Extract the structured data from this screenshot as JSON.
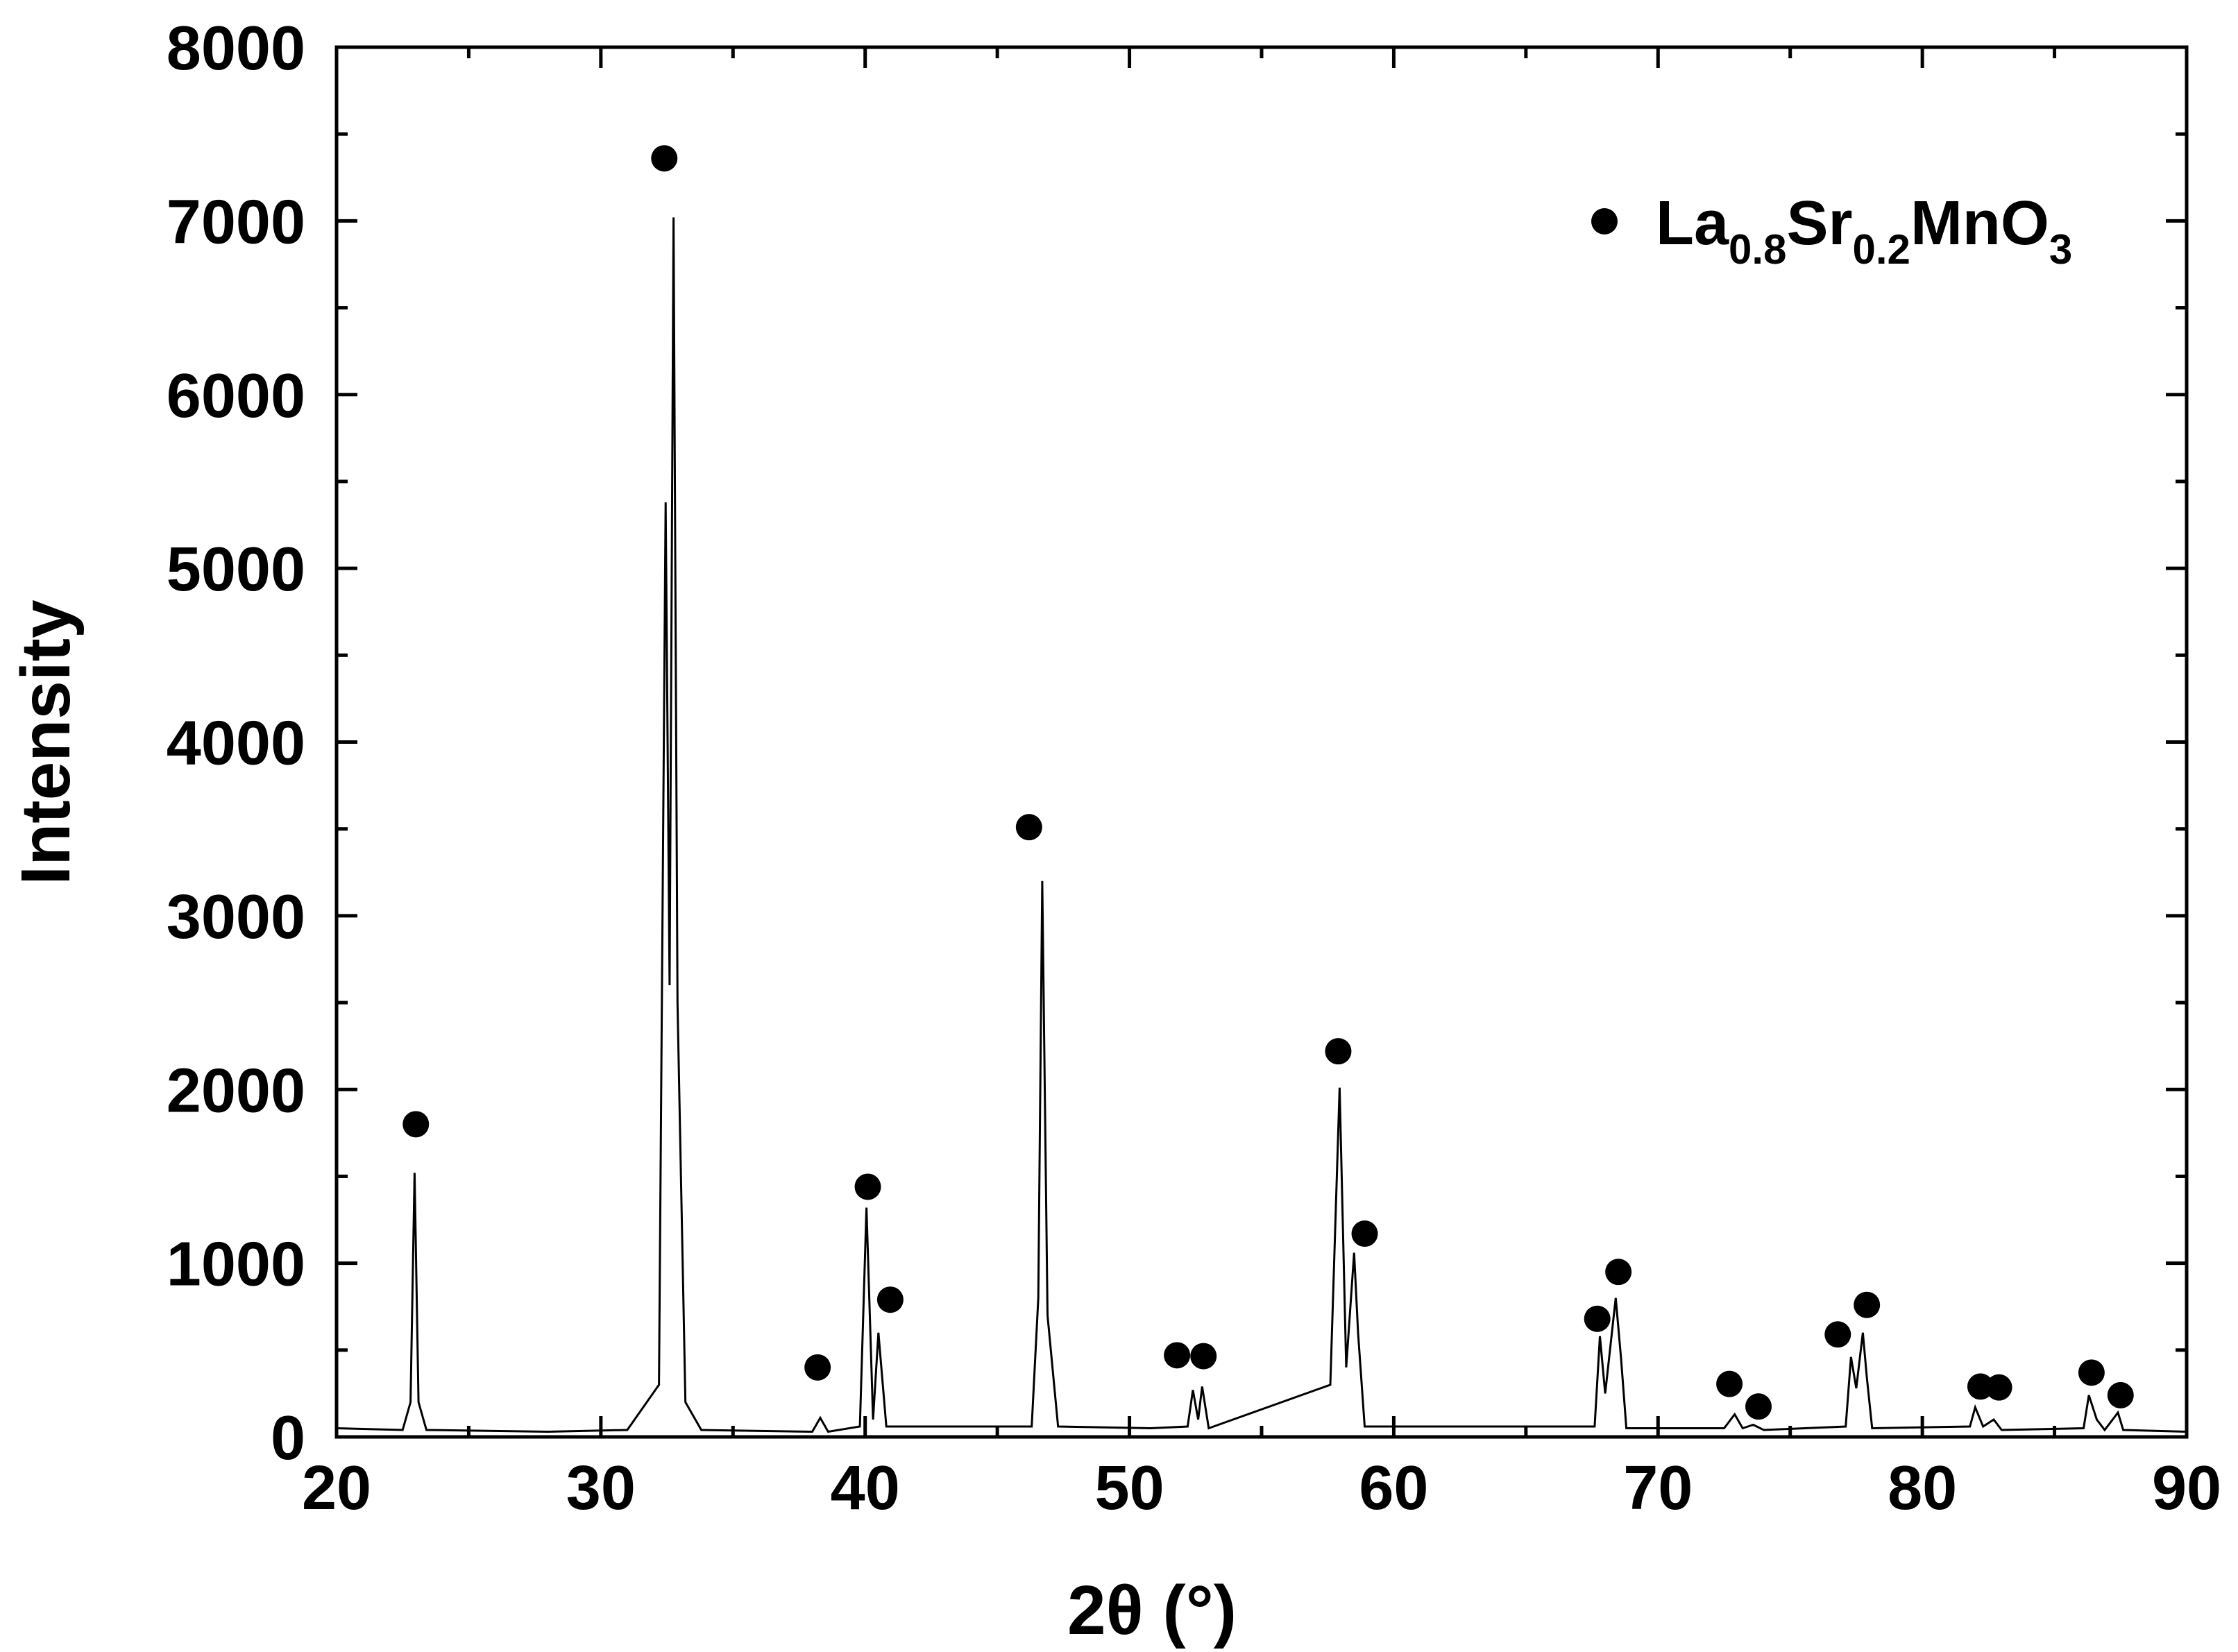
{
  "chart_data": {
    "type": "line",
    "xlabel": "2θ (°)",
    "ylabel": "Intensity",
    "xlim": [
      20,
      90
    ],
    "xticks": [
      20,
      30,
      40,
      50,
      60,
      70,
      80,
      90
    ],
    "ylim": [
      0,
      8000
    ],
    "yticks": [
      0,
      1000,
      2000,
      3000,
      4000,
      5000,
      6000,
      7000,
      8000
    ],
    "legend": "upper right",
    "series": [
      {
        "type": "line",
        "color": "#000000",
        "x": [
          20,
          22.5,
          22.8,
          22.95,
          23.1,
          23.4,
          28,
          31,
          32.2,
          32.45,
          32.6,
          32.75,
          32.9,
          33.2,
          33.8,
          38,
          38.3,
          38.6,
          39.8,
          40.05,
          40.3,
          40.5,
          40.8,
          46.3,
          46.55,
          46.7,
          46.9,
          47.3,
          50.8,
          52.2,
          52.4,
          52.6,
          52.75,
          53,
          57.6,
          57.95,
          58.2,
          58.5,
          58.65,
          58.9,
          67.6,
          67.8,
          68,
          68.4,
          68.6,
          68.8,
          72.5,
          72.9,
          73.2,
          73.6,
          74,
          77.1,
          77.3,
          77.5,
          77.75,
          77.9,
          78.1,
          81.8,
          82,
          82.3,
          82.7,
          83,
          86.1,
          86.3,
          86.6,
          86.9,
          87.4,
          87.6,
          90
        ],
        "values": [
          50,
          40,
          200,
          1520,
          200,
          40,
          30,
          40,
          300,
          5380,
          2600,
          7020,
          2500,
          200,
          40,
          30,
          110,
          30,
          60,
          1320,
          100,
          600,
          60,
          60,
          800,
          3200,
          700,
          60,
          50,
          60,
          270,
          100,
          290,
          50,
          300,
          2010,
          400,
          1060,
          600,
          60,
          60,
          580,
          250,
          800,
          450,
          50,
          50,
          130,
          50,
          70,
          40,
          60,
          460,
          280,
          600,
          340,
          50,
          60,
          170,
          60,
          100,
          40,
          50,
          240,
          100,
          40,
          140,
          40,
          30
        ]
      },
      {
        "type": "scatter",
        "name": "La0.8Sr0.2MnO3",
        "color": "#000000",
        "x": [
          23,
          32.4,
          38.2,
          40.1,
          40.95,
          46.2,
          51.8,
          52.8,
          57.9,
          58.9,
          67.7,
          68.5,
          72.7,
          73.8,
          76.8,
          77.9,
          82.2,
          82.9,
          86.4,
          87.5
        ],
        "values": [
          1800,
          7360,
          400,
          1440,
          790,
          3510,
          470,
          465,
          2220,
          1170,
          680,
          950,
          305,
          175,
          590,
          760,
          290,
          285,
          370,
          240
        ]
      }
    ]
  }
}
